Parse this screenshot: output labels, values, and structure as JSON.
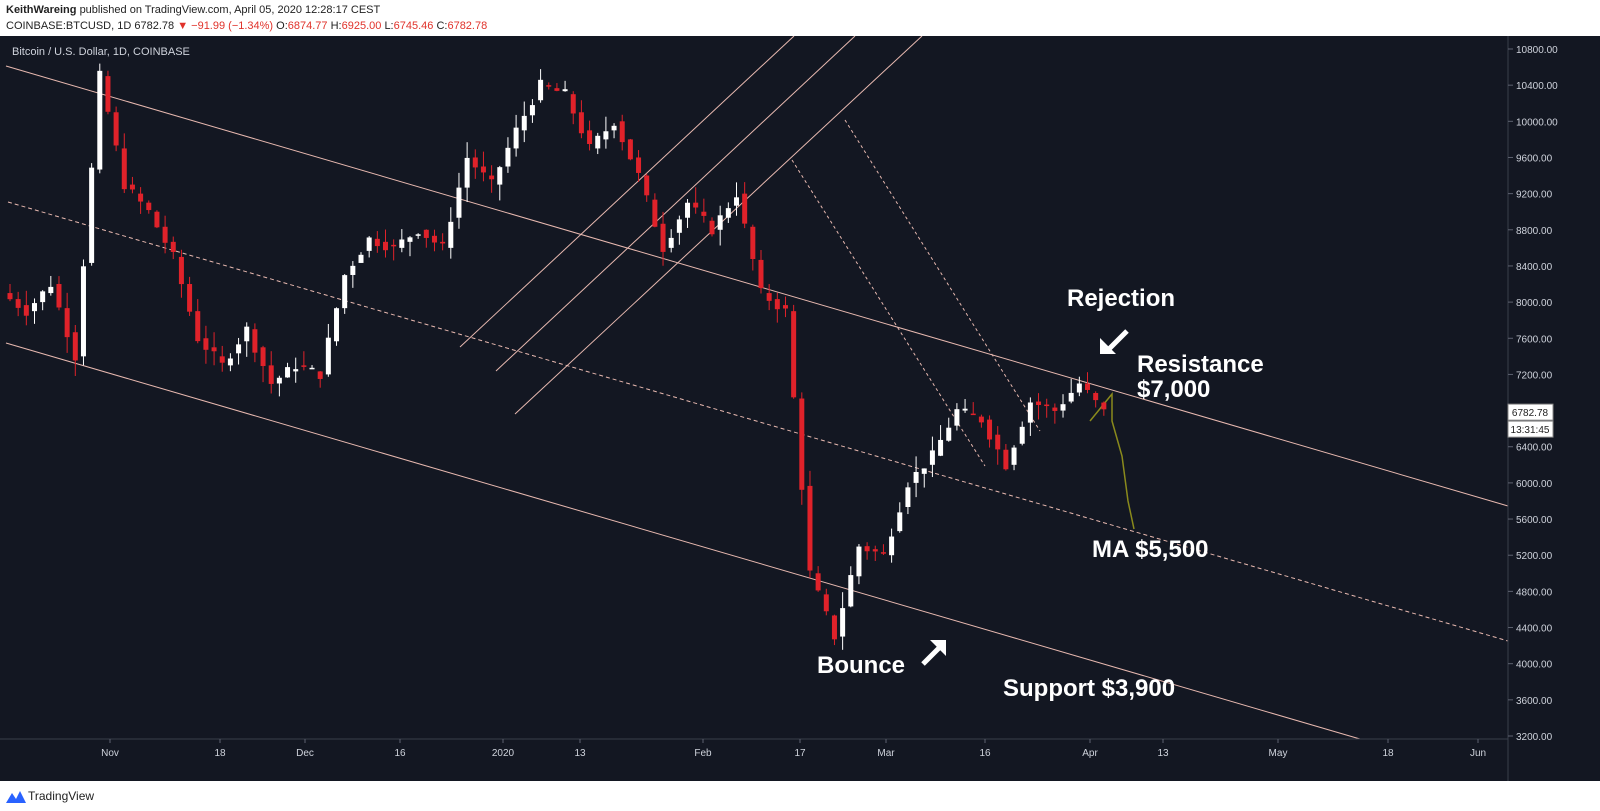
{
  "header": {
    "author": "KeithWareing",
    "published_text": "published on TradingView.com, April 05, 2020 12:28:17 CEST",
    "symbol": "COINBASE:BTCUSD, 1D",
    "last": "6782.78",
    "change": "▼ −91.99 (−1.34%)",
    "o_label": "O:",
    "o": "6874.77",
    "h_label": "H:",
    "h": "6925.00",
    "l_label": "L:",
    "l": "6745.46",
    "c_label": "C:",
    "c": "6782.78"
  },
  "footer": {
    "brand": "TradingView"
  },
  "colors": {
    "background": "#131722",
    "up": "#ffffff",
    "down": "#e0222a",
    "channel": "#e8b9b0",
    "projection": "#8a8a1c",
    "axis_text": "#cfd3dc"
  },
  "chart_data": {
    "type": "candlestick",
    "title": "Bitcoin / U.S. Dollar, 1D, COINBASE",
    "ylim": [
      3200,
      10800
    ],
    "y_ticks": [
      "10800.00",
      "10400.00",
      "10000.00",
      "9600.00",
      "9200.00",
      "8800.00",
      "8400.00",
      "8000.00",
      "7600.00",
      "7200.00",
      "6800.00",
      "6400.00",
      "6000.00",
      "5600.00",
      "5200.00",
      "4800.00",
      "4400.00",
      "4000.00",
      "3600.00",
      "3200.00"
    ],
    "x_ticks": [
      "Nov",
      "18",
      "Dec",
      "16",
      "2020",
      "13",
      "Feb",
      "17",
      "Mar",
      "16",
      "Apr",
      "13",
      "May",
      "18",
      "Jun"
    ],
    "price_label": "6782.78",
    "countdown_label": "13:31:45",
    "swing_points": [
      8100,
      7900,
      8200,
      7400,
      10500,
      9300,
      9000,
      8500,
      7600,
      7300,
      7700,
      7100,
      7300,
      7200,
      8300,
      8700,
      8600,
      8800,
      8600,
      9600,
      9300,
      9900,
      10400,
      10300,
      9700,
      10000,
      9400,
      8600,
      9100,
      8800,
      9200,
      8100,
      7900,
      5000,
      4300,
      5300,
      5200,
      6000,
      6300,
      6800,
      6700,
      6200,
      6900,
      6800,
      7100,
      6783
    ],
    "annotations": [
      {
        "text": "Rejection"
      },
      {
        "text": "Resistance"
      },
      {
        "text": "$7,000"
      },
      {
        "text": "MA $5,500"
      },
      {
        "text": "Bounce"
      },
      {
        "text": "Support $3,900"
      }
    ]
  }
}
